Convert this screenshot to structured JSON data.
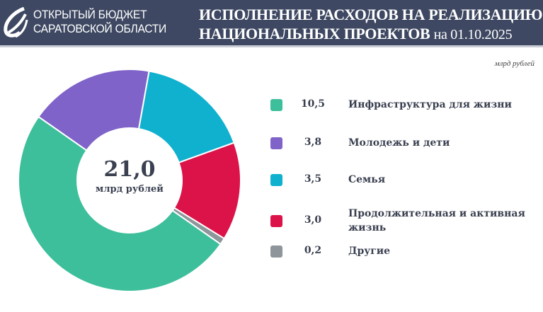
{
  "header": {
    "brand_line1": "ОТКРЫТЫЙ БЮДЖЕТ",
    "brand_line2": "САРАТОВСКОЙ ОБЛАСТИ",
    "title_line1": "ИСПОЛНЕНИЕ РАСХОДОВ  НА РЕАЛИЗАЦИЮ",
    "title_line2": "НАЦИОНАЛЬНЫХ ПРОЕКТОВ",
    "title_date": "на 01.10.2025",
    "header_bg": "#3e4862"
  },
  "chart_data": {
    "type": "pie",
    "donut": true,
    "units": "млрд рублей",
    "center_value": "21,0",
    "center_unit": "млрд рублей",
    "legend_placement": "right",
    "categories": [
      "Инфраструктура для жизни",
      "Молодежь и дети",
      "Семья",
      "Продолжительная  и активная жизнь",
      "Другие"
    ],
    "values": [
      10.5,
      3.8,
      3.5,
      3.0,
      0.2
    ],
    "value_labels": [
      "10,5",
      "3,8",
      "3,5",
      "3,0",
      "0,2"
    ],
    "colors": [
      "#3dbf9b",
      "#7f63c9",
      "#10b1cf",
      "#dc1348",
      "#8e959b"
    ]
  }
}
